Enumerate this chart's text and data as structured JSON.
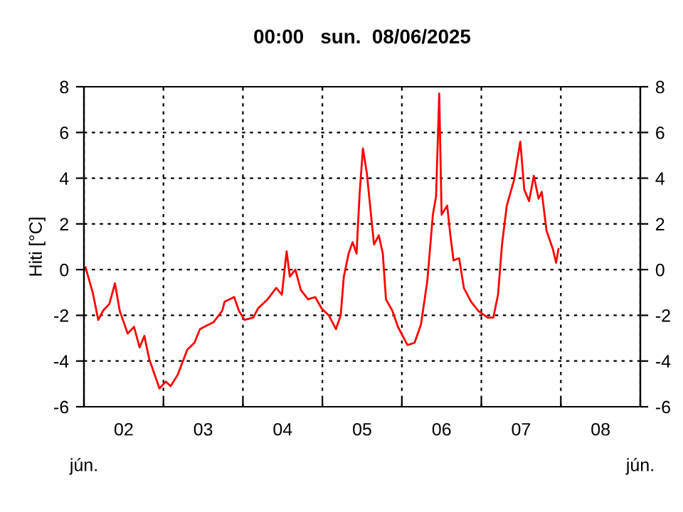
{
  "chart_data": {
    "type": "line",
    "title": "00:00   sun.  08/06/2025",
    "ylabel": "Hiti [°C]",
    "annotations": [
      "jún.",
      "jún."
    ],
    "series": [
      {
        "color": "#ff0000",
        "x": [
          2.02,
          2.11,
          2.18,
          2.24,
          2.32,
          2.39,
          2.45,
          2.55,
          2.63,
          2.7,
          2.76,
          2.82,
          2.95,
          3.03,
          3.09,
          3.18,
          3.3,
          3.39,
          3.46,
          3.63,
          3.74,
          3.77,
          3.89,
          3.95,
          4.02,
          4.13,
          4.19,
          4.31,
          4.42,
          4.49,
          4.55,
          4.59,
          4.66,
          4.73,
          4.82,
          4.91,
          4.99,
          5.08,
          5.17,
          5.23,
          5.27,
          5.33,
          5.38,
          5.43,
          5.45,
          5.47,
          5.51,
          5.56,
          5.62,
          5.65,
          5.71,
          5.76,
          5.8,
          5.88,
          5.95,
          6.07,
          6.16,
          6.24,
          6.32,
          6.39,
          6.43,
          6.47,
          6.5,
          6.57,
          6.61,
          6.65,
          6.72,
          6.78,
          6.87,
          6.96,
          7.08,
          7.15,
          7.21,
          7.26,
          7.32,
          7.41,
          7.49,
          7.54,
          7.6,
          7.66,
          7.72,
          7.76,
          7.82,
          7.9,
          7.94,
          7.97
        ],
        "values": [
          0.1,
          -1.0,
          -2.2,
          -1.8,
          -1.5,
          -0.6,
          -1.8,
          -2.8,
          -2.5,
          -3.4,
          -2.9,
          -3.9,
          -5.2,
          -4.9,
          -5.1,
          -4.6,
          -3.5,
          -3.2,
          -2.6,
          -2.3,
          -1.8,
          -1.4,
          -1.2,
          -1.8,
          -2.2,
          -2.1,
          -1.7,
          -1.3,
          -0.8,
          -1.1,
          0.8,
          -0.3,
          0.0,
          -0.9,
          -1.3,
          -1.2,
          -1.7,
          -2.0,
          -2.6,
          -2.0,
          -0.3,
          0.7,
          1.2,
          0.7,
          2.1,
          3.4,
          5.3,
          4.2,
          2.1,
          1.1,
          1.5,
          0.7,
          -1.3,
          -1.8,
          -2.5,
          -3.3,
          -3.2,
          -2.4,
          -0.5,
          2.4,
          3.2,
          7.7,
          2.4,
          2.8,
          1.5,
          0.4,
          0.5,
          -0.8,
          -1.4,
          -1.8,
          -2.1,
          -2.1,
          -1.1,
          1.1,
          2.8,
          3.9,
          5.6,
          3.5,
          3.0,
          4.1,
          3.1,
          3.4,
          1.7,
          0.9,
          0.3,
          0.9
        ]
      }
    ],
    "xlim": [
      2,
      9
    ],
    "xticks": [
      {
        "value": 2,
        "label": null
      },
      {
        "value": 3,
        "label": null
      },
      {
        "value": 4,
        "label": null
      },
      {
        "value": 5,
        "label": null
      },
      {
        "value": 6,
        "label": null
      },
      {
        "value": 7,
        "label": null
      },
      {
        "value": 8,
        "label": null
      },
      {
        "value": 9,
        "label": null
      },
      {
        "value": 2.5,
        "label": "02"
      },
      {
        "value": 3.5,
        "label": "03"
      },
      {
        "value": 4.5,
        "label": "04"
      },
      {
        "value": 5.5,
        "label": "05"
      },
      {
        "value": 6.5,
        "label": "06"
      },
      {
        "value": 7.5,
        "label": "07"
      },
      {
        "value": 8.5,
        "label": "08"
      }
    ],
    "ylim": [
      -6,
      8
    ],
    "yticks": [
      -6,
      -4,
      -2,
      0,
      2,
      4,
      6,
      8
    ],
    "y2lim": [
      -6,
      8
    ],
    "y2ticks": [
      -6,
      -4,
      -2,
      0,
      2,
      4,
      6,
      8
    ],
    "grid": true,
    "line_style": "solid",
    "marker": "none",
    "legend": false
  }
}
